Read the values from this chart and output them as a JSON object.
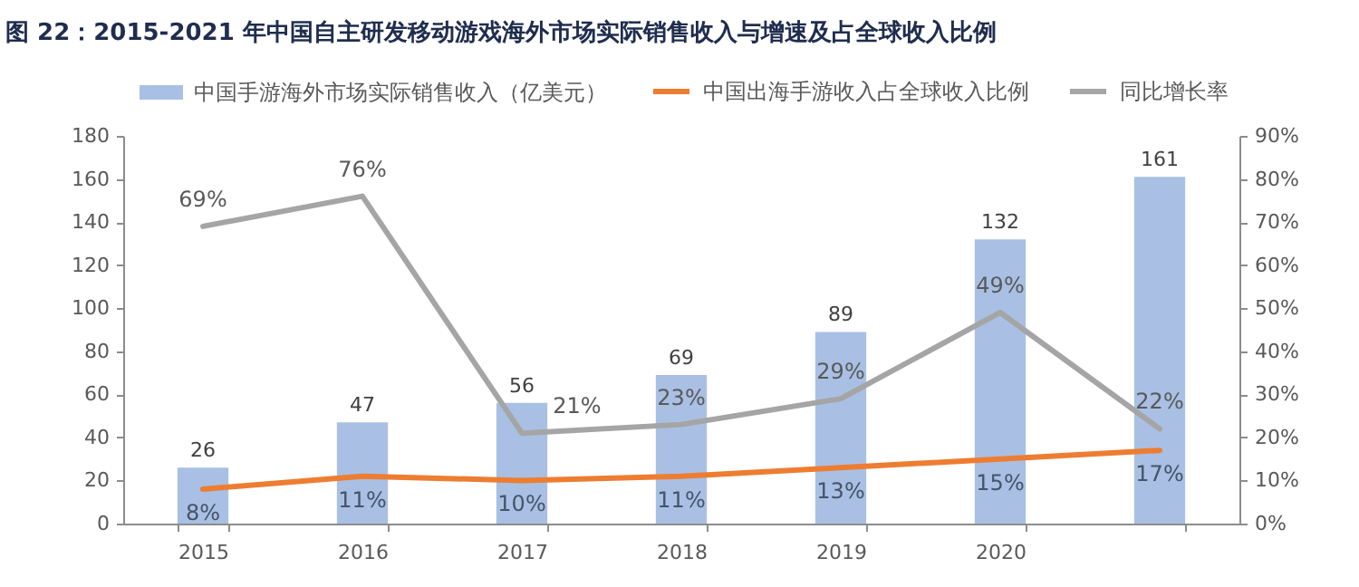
{
  "chart_data": {
    "type": "bar",
    "title": "图 22：2015-2021 年中国自主研发移动游戏海外市场实际销售收入与增速及占全球收入比例",
    "categories": [
      "2015",
      "2016",
      "2017",
      "2018",
      "2019",
      "2020",
      null
    ],
    "series": [
      {
        "name": "中国手游海外市场实际销售收入（亿美元）",
        "color": "#a9c0e4",
        "values": [
          26,
          47,
          56,
          69,
          89,
          132,
          161
        ],
        "value_labels": [
          "26",
          "47",
          "56",
          "69",
          "89",
          "132",
          "161"
        ]
      },
      {
        "name": "中国出海手游收入占全球收入比例",
        "type": "line",
        "axis": "y2",
        "color": "#ed7d31",
        "values": [
          8,
          11,
          10,
          11,
          13,
          15,
          17
        ],
        "value_labels": [
          "8%",
          "11%",
          "10%",
          "11%",
          "13%",
          "15%",
          "17%"
        ]
      },
      {
        "name": "同比增长率",
        "type": "line",
        "axis": "y2",
        "color": "#a5a5a5",
        "values": [
          69,
          76,
          21,
          23,
          29,
          49,
          22
        ],
        "value_labels": [
          "69%",
          "76%",
          "21%",
          "23%",
          "29%",
          "49%",
          "22%"
        ]
      }
    ],
    "ylim": [
      0,
      180
    ],
    "yticks": [
      0,
      20,
      40,
      60,
      80,
      100,
      120,
      140,
      160,
      180
    ],
    "y2lim": [
      0,
      90
    ],
    "y2ticks": [
      {
        "value": 0,
        "label": "0%"
      },
      {
        "value": 10,
        "label": "10%"
      },
      {
        "value": 20,
        "label": "20%"
      },
      {
        "value": 30,
        "label": "30%"
      },
      {
        "value": 40,
        "label": "40%"
      },
      {
        "value": 50,
        "label": "50%"
      },
      {
        "value": 60,
        "label": "60%"
      },
      {
        "value": 70,
        "label": "70%"
      },
      {
        "value": 80,
        "label": "80%"
      },
      {
        "value": 90,
        "label": "90%"
      }
    ],
    "legend": "top",
    "grid": false
  }
}
